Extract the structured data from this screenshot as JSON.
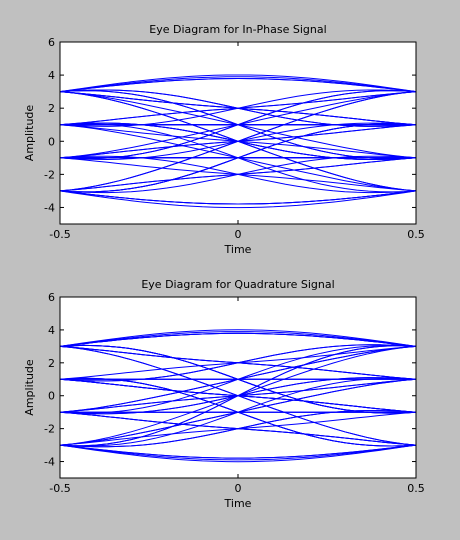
{
  "colors": {
    "figure_bg": "#c0c0c0",
    "axes_bg": "#ffffff",
    "trace": "#0000ff",
    "axis": "#000000"
  },
  "chart_data": [
    {
      "type": "line",
      "title": "Eye Diagram for In-Phase Signal",
      "xlabel": "Time",
      "ylabel": "Amplitude",
      "xlim": [
        -0.5,
        0.5
      ],
      "ylim": [
        -5,
        6
      ],
      "xticks": [
        -0.5,
        0,
        0.5
      ],
      "xtick_labels": [
        "-0.5",
        "0",
        "0.5"
      ],
      "yticks": [
        -4,
        -2,
        0,
        2,
        4,
        6
      ],
      "ytick_labels": [
        "-4",
        "-2",
        "0",
        "2",
        "4",
        "6"
      ],
      "grid": false,
      "trace_transitions": [
        [
          3,
          3
        ],
        [
          3,
          3
        ],
        [
          3,
          1
        ],
        [
          3,
          -1
        ],
        [
          3,
          -3
        ],
        [
          3,
          3
        ],
        [
          3,
          1
        ],
        [
          3,
          1
        ],
        [
          3,
          -1
        ],
        [
          3,
          3
        ],
        [
          3,
          -3
        ],
        [
          3,
          1
        ],
        [
          3,
          1
        ],
        [
          3,
          -1
        ],
        [
          1,
          3
        ],
        [
          1,
          1
        ],
        [
          1,
          1
        ],
        [
          1,
          -1
        ],
        [
          1,
          -3
        ],
        [
          1,
          3
        ],
        [
          1,
          1
        ],
        [
          1,
          -1
        ],
        [
          1,
          1
        ],
        [
          1,
          3
        ],
        [
          1,
          -1
        ],
        [
          1,
          -3
        ],
        [
          1,
          1
        ],
        [
          1,
          -1
        ],
        [
          -1,
          3
        ],
        [
          -1,
          1
        ],
        [
          -1,
          -1
        ],
        [
          -1,
          -1
        ],
        [
          -1,
          -3
        ],
        [
          -1,
          3
        ],
        [
          -1,
          -1
        ],
        [
          -1,
          1
        ],
        [
          -1,
          -1
        ],
        [
          -1,
          -3
        ],
        [
          -1,
          1
        ],
        [
          -1,
          -1
        ],
        [
          -1,
          3
        ],
        [
          -3,
          3
        ],
        [
          -3,
          1
        ],
        [
          -3,
          -1
        ],
        [
          -3,
          -3
        ],
        [
          -3,
          -3
        ],
        [
          -3,
          1
        ],
        [
          -3,
          -1
        ],
        [
          -3,
          -3
        ],
        [
          -3,
          3
        ],
        [
          -3,
          -1
        ],
        [
          -3,
          -3
        ],
        [
          -3,
          1
        ]
      ]
    },
    {
      "type": "line",
      "title": "Eye Diagram for Quadrature Signal",
      "xlabel": "Time",
      "ylabel": "Amplitude",
      "xlim": [
        -0.5,
        0.5
      ],
      "ylim": [
        -5,
        6
      ],
      "xticks": [
        -0.5,
        0,
        0.5
      ],
      "xtick_labels": [
        "-0.5",
        "0",
        "0.5"
      ],
      "yticks": [
        -4,
        -2,
        0,
        2,
        4,
        6
      ],
      "ytick_labels": [
        "-4",
        "-2",
        "0",
        "2",
        "4",
        "6"
      ],
      "grid": false,
      "trace_transitions": [
        [
          3,
          3
        ],
        [
          3,
          3
        ],
        [
          3,
          1
        ],
        [
          3,
          -1
        ],
        [
          3,
          -3
        ],
        [
          3,
          3
        ],
        [
          3,
          1
        ],
        [
          3,
          -1
        ],
        [
          3,
          -3
        ],
        [
          3,
          3
        ],
        [
          3,
          1
        ],
        [
          3,
          -1
        ],
        [
          3,
          3
        ],
        [
          3,
          -1
        ],
        [
          1,
          3
        ],
        [
          1,
          1
        ],
        [
          1,
          -1
        ],
        [
          1,
          -3
        ],
        [
          1,
          3
        ],
        [
          1,
          1
        ],
        [
          1,
          -1
        ],
        [
          1,
          -3
        ],
        [
          1,
          1
        ],
        [
          1,
          3
        ],
        [
          1,
          -1
        ],
        [
          1,
          -3
        ],
        [
          1,
          -1
        ],
        [
          -1,
          3
        ],
        [
          -1,
          1
        ],
        [
          -1,
          -1
        ],
        [
          -1,
          -3
        ],
        [
          -1,
          3
        ],
        [
          -1,
          1
        ],
        [
          -1,
          -1
        ],
        [
          -1,
          -3
        ],
        [
          -1,
          -1
        ],
        [
          -1,
          3
        ],
        [
          -1,
          1
        ],
        [
          -1,
          -3
        ],
        [
          -1,
          1
        ],
        [
          -3,
          3
        ],
        [
          -3,
          1
        ],
        [
          -3,
          -1
        ],
        [
          -3,
          -3
        ],
        [
          -3,
          -3
        ],
        [
          -3,
          3
        ],
        [
          -3,
          1
        ],
        [
          -3,
          -1
        ],
        [
          -3,
          -3
        ],
        [
          -3,
          1
        ],
        [
          -3,
          -1
        ],
        [
          -3,
          -3
        ],
        [
          -3,
          3
        ]
      ]
    }
  ]
}
